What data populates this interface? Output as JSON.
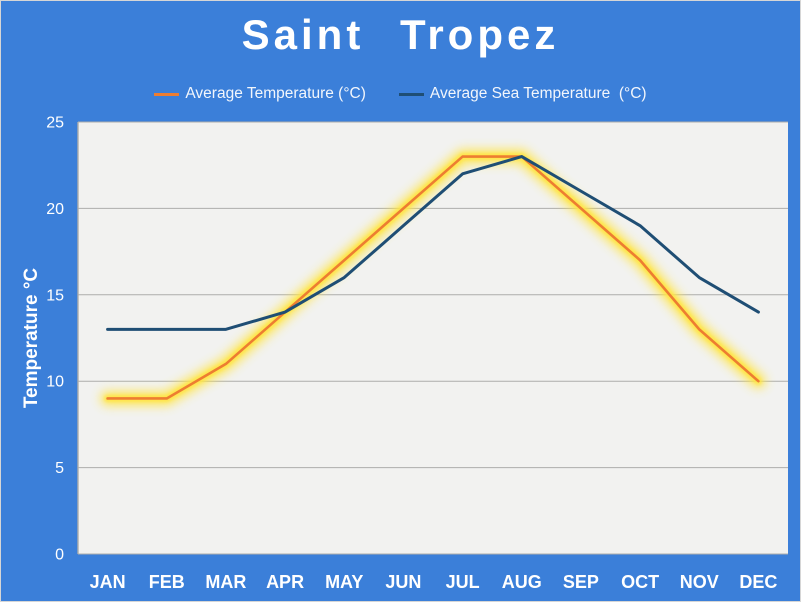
{
  "chart_data": {
    "type": "line",
    "title": "Saint Tropez",
    "categories": [
      "JAN",
      "FEB",
      "MAR",
      "APR",
      "MAY",
      "JUN",
      "JUL",
      "AUG",
      "SEP",
      "OCT",
      "NOV",
      "DEC"
    ],
    "series": [
      {
        "name": "Average Temperature (°C)",
        "color": "#ed7d31",
        "highlight_glow_color": "#ffe545",
        "values": [
          9,
          9,
          11,
          14,
          17,
          20,
          23,
          23,
          20,
          17,
          13,
          10
        ]
      },
      {
        "name": "Average Sea Temperature  (°C)",
        "color": "#1f4e74",
        "values": [
          13,
          13,
          13,
          14,
          16,
          19,
          22,
          23,
          21,
          19,
          16,
          14
        ]
      }
    ],
    "xlabel": "",
    "ylabel": "Temperature °C",
    "ylim": [
      0,
      25
    ],
    "yticks": [
      0,
      5,
      10,
      15,
      20,
      25
    ],
    "grid": "horizontal",
    "legend_position": "top",
    "colors": {
      "background": "#3b7fd9",
      "plot_background": "#f2f2f0",
      "gridline_color": "#adadab",
      "axis_text_color": "#ffffff",
      "title_color": "#ffffff"
    }
  }
}
